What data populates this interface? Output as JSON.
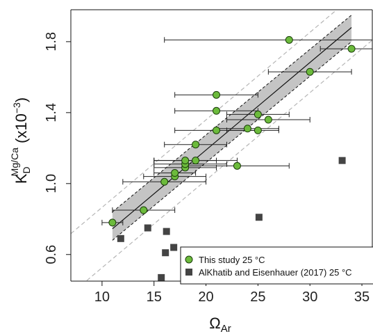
{
  "chart_data": {
    "type": "scatter",
    "xlabel": {
      "main": "Ω",
      "sub": "Ar"
    },
    "ylabel": {
      "main": "K",
      "sub": "D",
      "sup": "Mg/Ca",
      "suffix": " (x10",
      "suffix_sup": "−3",
      "suffix_end": ")"
    },
    "xlim": [
      7,
      36
    ],
    "ylim": [
      0.45,
      1.98
    ],
    "xticks": [
      10,
      15,
      20,
      25,
      30,
      35
    ],
    "yticks": [
      0.6,
      1.0,
      1.4,
      1.8
    ],
    "ytick_labels": [
      "0.6",
      "1.0",
      "1.4",
      "1.8"
    ],
    "grid": false,
    "legend_position": "bottom-right",
    "series": [
      {
        "name": "This study 25 °C",
        "marker": "circle",
        "color": "#6cbb3c",
        "points": [
          {
            "x": 11,
            "y": 0.78,
            "xerr": [
              10,
              12
            ]
          },
          {
            "x": 14,
            "y": 0.85,
            "xerr": [
              11,
              17
            ]
          },
          {
            "x": 16,
            "y": 1.01,
            "xerr": [
              12,
              20
            ]
          },
          {
            "x": 17,
            "y": 1.04,
            "xerr": [
              14,
              20
            ]
          },
          {
            "x": 17,
            "y": 1.06,
            "xerr": [
              15,
              19
            ]
          },
          {
            "x": 18,
            "y": 1.09,
            "xerr": [
              15,
              21
            ]
          },
          {
            "x": 18,
            "y": 1.11,
            "xerr": [
              15,
              22
            ]
          },
          {
            "x": 18,
            "y": 1.13,
            "xerr": [
              15,
              21
            ]
          },
          {
            "x": 19,
            "y": 1.13,
            "xerr": [
              15,
              23
            ]
          },
          {
            "x": 19,
            "y": 1.22,
            "xerr": [
              16,
              22
            ]
          },
          {
            "x": 23,
            "y": 1.1,
            "xerr": [
              18,
              28
            ]
          },
          {
            "x": 21,
            "y": 1.3,
            "xerr": [
              17,
              25
            ]
          },
          {
            "x": 24,
            "y": 1.31,
            "xerr": [
              21,
              27
            ]
          },
          {
            "x": 25,
            "y": 1.3,
            "xerr": [
              22,
              27
            ]
          },
          {
            "x": 26,
            "y": 1.36,
            "xerr": [
              22,
              30
            ]
          },
          {
            "x": 25,
            "y": 1.39,
            "xerr": [
              22,
              28
            ]
          },
          {
            "x": 21,
            "y": 1.41,
            "xerr": [
              17,
              25
            ]
          },
          {
            "x": 21,
            "y": 1.5,
            "xerr": [
              17,
              25
            ]
          },
          {
            "x": 30,
            "y": 1.63,
            "xerr": [
              26,
              34
            ]
          },
          {
            "x": 28,
            "y": 1.81,
            "xerr": [
              16,
              36
            ]
          },
          {
            "x": 34,
            "y": 1.76,
            "xerr": [
              31,
              36
            ]
          }
        ]
      },
      {
        "name": "AlKhatib and Eisenhauer (2017) 25 °C",
        "marker": "square",
        "color": "#444444",
        "points": [
          {
            "x": 11.8,
            "y": 0.69
          },
          {
            "x": 14.4,
            "y": 0.75
          },
          {
            "x": 16.2,
            "y": 0.73
          },
          {
            "x": 16.1,
            "y": 0.61
          },
          {
            "x": 16.9,
            "y": 0.64
          },
          {
            "x": 15.7,
            "y": 0.47
          },
          {
            "x": 25.1,
            "y": 0.81
          },
          {
            "x": 33.1,
            "y": 1.13
          }
        ]
      }
    ],
    "regression": {
      "x_range": [
        11,
        34
      ],
      "y_at_start": 0.745,
      "y_at_end": 1.88,
      "confidence_at_start": [
        0.68,
        0.84
      ],
      "confidence_at_end": [
        1.8,
        1.95
      ],
      "prediction_offset": 0.17
    },
    "colors": {
      "band": "#c4c4c4",
      "line": "#111111",
      "prediction": "#b5b5b5"
    }
  }
}
